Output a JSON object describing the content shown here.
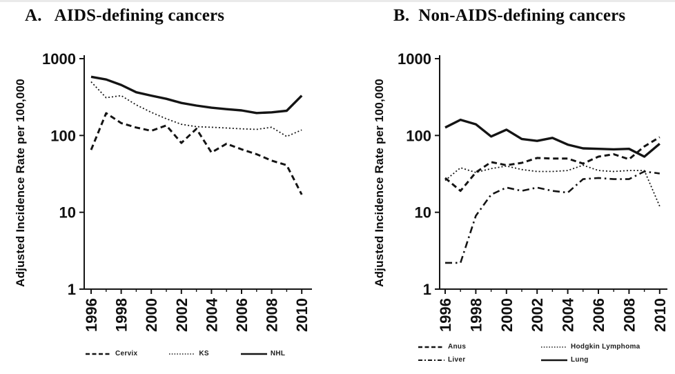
{
  "colors": {
    "line": "#141414",
    "text": "#101010",
    "background": "#ffffff"
  },
  "chart_data": [
    {
      "type": "line",
      "title": "A.   AIDS-defining cancers",
      "ylabel": "Adjusted Incidence Rate per 100,000",
      "xlabel": "",
      "yscale": "log",
      "ylim": [
        1,
        1000
      ],
      "yticks": [
        1,
        10,
        100,
        1000
      ],
      "x": [
        1996,
        1997,
        1998,
        1999,
        2000,
        2001,
        2002,
        2003,
        2004,
        2005,
        2006,
        2007,
        2008,
        2009,
        2010
      ],
      "xticks_labeled": [
        1996,
        1998,
        2000,
        2002,
        2004,
        2006,
        2008,
        2010
      ],
      "grid": false,
      "legend_position": "bottom-row",
      "series": [
        {
          "name": "Cervix",
          "style": "dashed",
          "values": [
            65,
            195,
            145,
            127,
            115,
            135,
            80,
            122,
            60,
            78,
            66,
            57,
            47,
            41,
            17
          ]
        },
        {
          "name": "KS",
          "style": "dotted",
          "values": [
            500,
            310,
            330,
            250,
            200,
            165,
            140,
            130,
            128,
            125,
            122,
            120,
            128,
            97,
            118
          ]
        },
        {
          "name": "NHL",
          "style": "solid",
          "values": [
            580,
            535,
            455,
            365,
            330,
            300,
            265,
            245,
            230,
            220,
            212,
            196,
            200,
            210,
            330
          ]
        }
      ]
    },
    {
      "type": "line",
      "title": "B.  Non-AIDS-defining cancers",
      "ylabel": "Adjusted Incidence Rate per 100,000",
      "xlabel": "",
      "yscale": "log",
      "ylim": [
        1,
        1000
      ],
      "yticks": [
        1,
        10,
        100,
        1000
      ],
      "x": [
        1996,
        1997,
        1998,
        1999,
        2000,
        2001,
        2002,
        2003,
        2004,
        2005,
        2006,
        2007,
        2008,
        2009,
        2010
      ],
      "xticks_labeled": [
        1996,
        1998,
        2000,
        2002,
        2004,
        2006,
        2008,
        2010
      ],
      "grid": false,
      "legend_position": "bottom-grid",
      "series": [
        {
          "name": "Anus",
          "style": "dashed",
          "values": [
            28,
            19,
            33,
            45,
            41,
            44,
            51,
            50,
            50,
            43,
            53,
            57,
            49,
            72,
            95
          ]
        },
        {
          "name": "Hodgkin Lymphoma",
          "style": "dotted",
          "values": [
            26,
            38,
            33,
            37,
            40,
            36,
            34,
            34,
            35,
            41,
            35,
            34,
            35,
            35,
            12
          ]
        },
        {
          "name": "Liver",
          "style": "dashdot",
          "values": [
            2.2,
            2.2,
            9,
            17,
            21,
            19,
            21,
            19,
            18,
            27,
            28,
            27,
            27,
            34,
            32
          ]
        },
        {
          "name": "Lung",
          "style": "solid",
          "values": [
            127,
            160,
            140,
            97,
            119,
            90,
            85,
            93,
            76,
            68,
            67,
            66,
            67,
            53,
            78
          ]
        }
      ]
    }
  ]
}
